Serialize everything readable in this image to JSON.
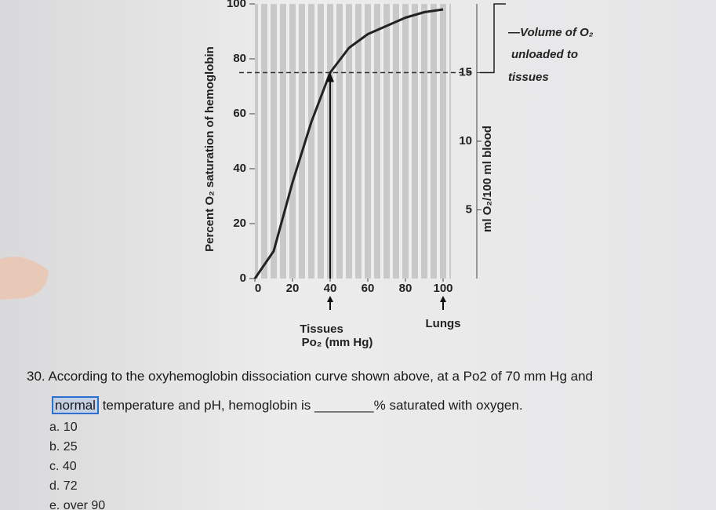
{
  "chart_data": {
    "type": "line",
    "y_axis_label": "Percent O₂ saturation of hemoglobin",
    "y2_axis_label": "ml O₂/100 ml blood",
    "x_axis_label": "Po₂ (mm Hg)",
    "annotations": [
      "Tissues",
      "Lungs"
    ],
    "bracket_label": [
      "—Volume of O₂",
      "unloaded to",
      "tissues"
    ],
    "x": [
      0,
      10,
      20,
      30,
      40,
      50,
      60,
      70,
      80,
      90,
      100
    ],
    "values": [
      0,
      10,
      35,
      57,
      75,
      84,
      89,
      92,
      95,
      97,
      98
    ],
    "color": "#222222",
    "xlim": [
      0,
      100
    ],
    "xticks": [
      0,
      20,
      40,
      60,
      80,
      100
    ],
    "ylim": [
      0,
      100
    ],
    "yticks": [
      0,
      20,
      40,
      60,
      80,
      100
    ],
    "y2lim": [
      0,
      20
    ],
    "y2ticks": [
      5,
      10,
      15
    ]
  },
  "question": {
    "number": "30.",
    "line1": "According to the oxyhemoglobin dissociation curve shown above, at a Po2 of 70 mm Hg and",
    "highlight": "normal",
    "line2": "temperature and pH, hemoglobin is ________% saturated with oxygen.",
    "options": [
      "a. 10",
      "b. 25",
      "c. 40",
      "d. 72",
      "e. over 90"
    ]
  }
}
